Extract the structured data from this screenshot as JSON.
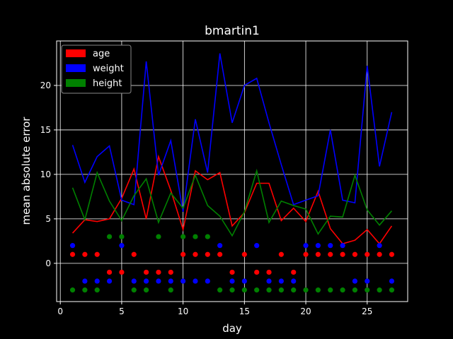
{
  "chart_data": {
    "type": "line",
    "title": "bmartin1",
    "xlabel": "day",
    "ylabel": "mean absolute error",
    "xlim": [
      -0.3,
      28.3
    ],
    "ylim": [
      -4.3,
      25.0
    ],
    "xticks": [
      0,
      5,
      10,
      15,
      20,
      25
    ],
    "yticks": [
      0,
      5,
      10,
      15,
      20
    ],
    "grid": true,
    "legend_position": "top-left",
    "background": "#000000",
    "x": [
      1,
      2,
      3,
      4,
      5,
      6,
      7,
      8,
      9,
      10,
      11,
      12,
      13,
      14,
      15,
      16,
      17,
      18,
      19,
      20,
      21,
      22,
      23,
      24,
      25,
      26,
      27
    ],
    "series": [
      {
        "name": "age",
        "color": "#ff0000",
        "values": [
          3.4,
          4.9,
          4.7,
          5.0,
          7.3,
          10.6,
          5.0,
          12.0,
          8.2,
          3.8,
          10.4,
          9.4,
          10.2,
          4.2,
          5.7,
          9.0,
          9.0,
          4.8,
          6.2,
          4.7,
          8.1,
          3.9,
          2.2,
          2.6,
          3.8,
          2.2,
          4.2
        ]
      },
      {
        "name": "weight",
        "color": "#0000ff",
        "values": [
          13.3,
          9.1,
          12.0,
          13.2,
          7.1,
          6.6,
          22.7,
          9.9,
          13.8,
          5.8,
          16.2,
          10.2,
          23.6,
          15.8,
          20.0,
          20.8,
          15.8,
          11.1,
          6.6,
          7.1,
          7.6,
          15.0,
          7.1,
          6.8,
          22.2,
          10.9,
          17.0
        ]
      },
      {
        "name": "height",
        "color": "#008000",
        "values": [
          8.5,
          4.9,
          10.2,
          7.0,
          4.8,
          7.6,
          9.5,
          4.6,
          7.9,
          6.2,
          9.9,
          6.5,
          5.3,
          3.1,
          5.8,
          10.4,
          4.6,
          7.0,
          6.5,
          6.1,
          3.3,
          5.3,
          5.2,
          9.9,
          6.0,
          4.3,
          5.9
        ]
      }
    ],
    "dot_rows": [
      {
        "name": "age",
        "color": "#ff0000",
        "y_values": [
          1,
          -1
        ],
        "x_top": [
          1,
          2,
          3,
          6,
          10,
          11,
          12,
          13,
          15,
          18,
          20,
          21,
          22,
          23,
          24,
          25,
          26,
          27
        ],
        "x_bottom": [
          4,
          5,
          7,
          8,
          9,
          14,
          16,
          17,
          19
        ]
      },
      {
        "name": "weight",
        "color": "#0000ff",
        "y_values": [
          2,
          -2
        ],
        "x_top": [
          1,
          5,
          13,
          16,
          20,
          21,
          22,
          23,
          26
        ],
        "x_bottom": [
          2,
          3,
          4,
          6,
          7,
          8,
          9,
          10,
          11,
          12,
          14,
          15,
          17,
          18,
          19,
          24,
          25,
          27
        ]
      },
      {
        "name": "height",
        "color": "#008000",
        "y_values": [
          3,
          -3
        ],
        "x_top": [
          4,
          5,
          8,
          10,
          11,
          12
        ],
        "x_bottom": [
          1,
          2,
          3,
          6,
          7,
          9,
          13,
          14,
          15,
          16,
          17,
          18,
          19,
          20,
          21,
          22,
          23,
          24,
          25,
          26,
          27
        ]
      }
    ]
  }
}
